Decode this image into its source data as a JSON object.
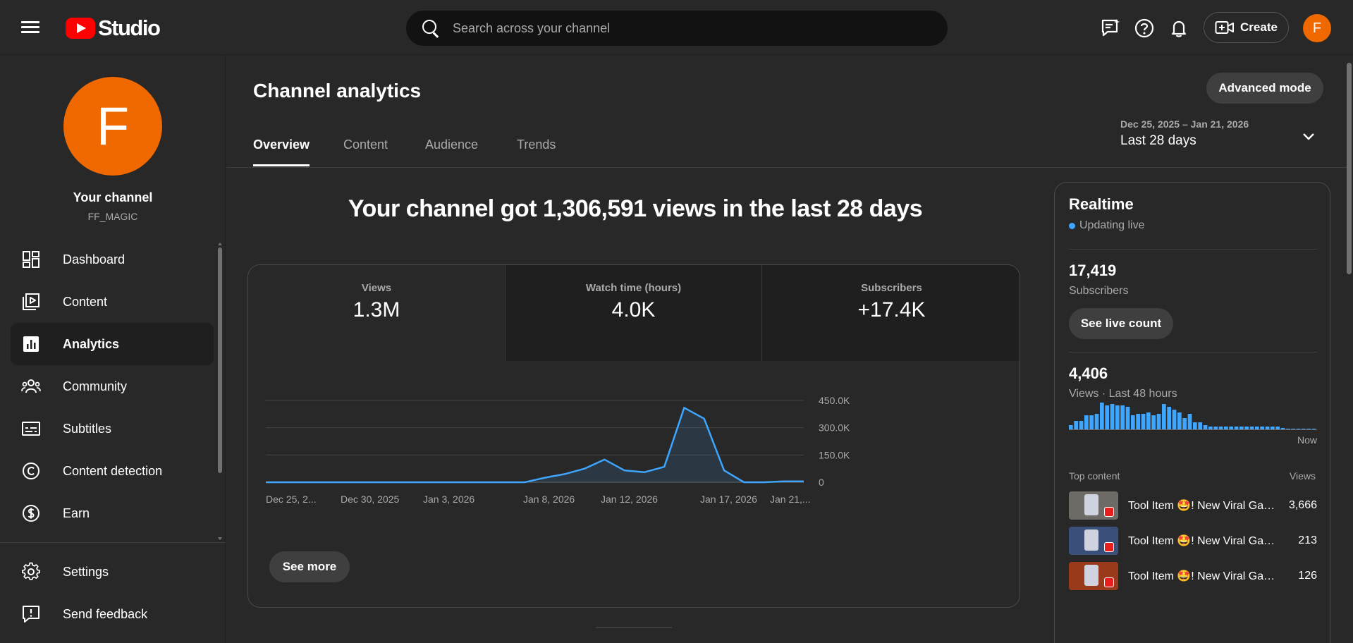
{
  "header": {
    "logo_text": "Studio",
    "search_placeholder": "Search across your channel",
    "create_label": "Create",
    "avatar_letter": "F"
  },
  "sidebar": {
    "avatar_letter": "F",
    "channel_label": "Your channel",
    "channel_handle": "FF_MAGIC",
    "items": [
      {
        "label": "Dashboard",
        "icon": "dashboard-icon"
      },
      {
        "label": "Content",
        "icon": "content-icon"
      },
      {
        "label": "Analytics",
        "icon": "analytics-icon",
        "active": true
      },
      {
        "label": "Community",
        "icon": "community-icon"
      },
      {
        "label": "Subtitles",
        "icon": "subtitles-icon"
      },
      {
        "label": "Content detection",
        "icon": "copyright-icon"
      },
      {
        "label": "Earn",
        "icon": "dollar-icon"
      }
    ],
    "bottom_items": [
      {
        "label": "Settings",
        "icon": "gear-icon"
      },
      {
        "label": "Send feedback",
        "icon": "feedback-icon"
      }
    ]
  },
  "main": {
    "title": "Channel analytics",
    "advanced_mode_label": "Advanced mode",
    "tabs": [
      {
        "label": "Overview",
        "active": true
      },
      {
        "label": "Content"
      },
      {
        "label": "Audience"
      },
      {
        "label": "Trends"
      }
    ],
    "date_range": "Dec 25, 2025 – Jan 21, 2026",
    "date_label": "Last 28 days",
    "headline": "Your channel got 1,306,591 views in the last 28 days",
    "metrics": [
      {
        "label": "Views",
        "value": "1.3M"
      },
      {
        "label": "Watch time (hours)",
        "value": "4.0K"
      },
      {
        "label": "Subscribers",
        "value": "+17.4K"
      }
    ],
    "see_more_label": "See more"
  },
  "chart_data": {
    "type": "area",
    "x_tick_labels": [
      "Dec 25, 2...",
      "Dec 30, 2025",
      "Jan 3, 2026",
      "Jan 8, 2026",
      "Jan 12, 2026",
      "Jan 17, 2026",
      "Jan 21,..."
    ],
    "y_tick_labels": [
      "450.0K",
      "300.0K",
      "150.0K",
      "0"
    ],
    "ylim": [
      0,
      450000
    ],
    "values": [
      0,
      0,
      0,
      0,
      0,
      0,
      0,
      0,
      0,
      0,
      0,
      0,
      0,
      0,
      25000,
      45000,
      75000,
      125000,
      65000,
      55000,
      85000,
      410000,
      350000,
      65000,
      0,
      0,
      5000,
      5000
    ],
    "grid": true,
    "color": "#3ea6ff"
  },
  "realtime": {
    "title": "Realtime",
    "status": "Updating live",
    "subscribers_value": "17,419",
    "subscribers_label": "Subscribers",
    "live_count_label": "See live count",
    "views_value": "4,406",
    "views_label": "Views · Last 48 hours",
    "now_label": "Now",
    "bar_values": [
      3,
      6,
      6,
      10,
      10,
      11,
      19,
      17,
      18,
      17,
      17,
      16,
      10,
      11,
      11,
      12,
      10,
      11,
      18,
      16,
      14,
      12,
      8,
      11,
      5,
      5,
      3,
      2,
      2,
      2,
      2,
      2,
      2,
      2,
      2,
      2,
      2,
      2,
      2,
      2,
      2,
      1,
      0,
      0,
      0,
      0,
      0,
      0
    ],
    "top_content_label": "Top content",
    "top_content_views_label": "Views",
    "top_content": [
      {
        "title": "Tool Item 🤩! New Viral Game ...",
        "views": "3,666",
        "thumb_color": "#6e6a66"
      },
      {
        "title": "Tool Item 🤩! New Viral Game ...",
        "views": "213",
        "thumb_color": "#3a4f7a"
      },
      {
        "title": "Tool Item 🤩! New Viral Game ...",
        "views": "126",
        "thumb_color": "#9a3a1c"
      }
    ]
  }
}
